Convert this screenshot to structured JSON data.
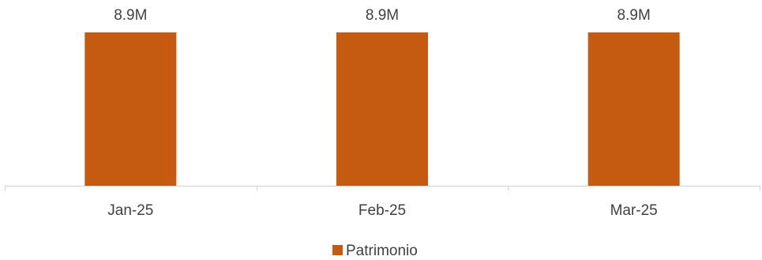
{
  "chart_data": {
    "type": "bar",
    "categories": [
      "Jan-25",
      "Feb-25",
      "Mar-25"
    ],
    "series": [
      {
        "name": "Patrimonio",
        "values": [
          8.9,
          8.9,
          8.9
        ],
        "data_labels": [
          "8.9M",
          "8.9M",
          "8.9M"
        ],
        "color": "#C55A11"
      }
    ],
    "title": "",
    "xlabel": "",
    "ylabel": "",
    "ylim": [
      0,
      8.9
    ],
    "grid": false,
    "legend": {
      "position": "bottom"
    }
  }
}
